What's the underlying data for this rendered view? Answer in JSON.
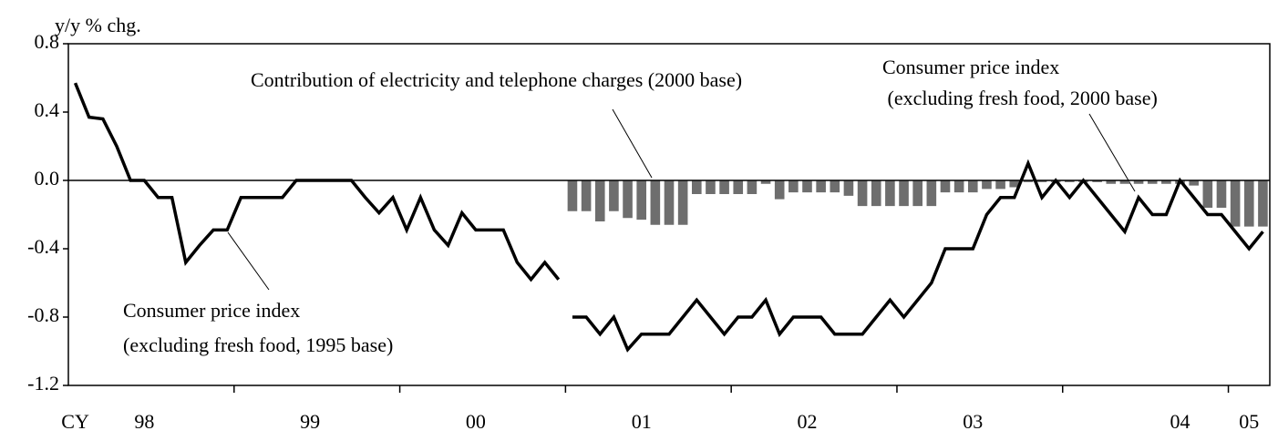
{
  "chart_data": {
    "type": "combo",
    "y_label": "y/y % chg.",
    "categories": [
      "CY",
      null,
      null,
      null,
      null,
      "98",
      null,
      null,
      null,
      null,
      null,
      null,
      null,
      null,
      null,
      null,
      null,
      "99",
      null,
      null,
      null,
      null,
      null,
      null,
      null,
      null,
      null,
      null,
      null,
      "00",
      null,
      null,
      null,
      null,
      null,
      null,
      null,
      null,
      null,
      null,
      null,
      "01",
      null,
      null,
      null,
      null,
      null,
      null,
      null,
      null,
      null,
      null,
      null,
      "02",
      null,
      null,
      null,
      null,
      null,
      null,
      null,
      null,
      null,
      null,
      null,
      "03",
      null,
      null,
      null,
      null,
      null,
      null,
      null,
      null,
      null,
      null,
      null,
      null,
      null,
      null,
      "04",
      null,
      null,
      null,
      null,
      "05",
      null
    ],
    "ylim": [
      -1.2,
      0.8
    ],
    "yticks": [
      0.8,
      0.4,
      {
        "value": 0,
        "label": "0.0"
      },
      -0.4,
      -0.8,
      -1.2
    ],
    "series": [
      {
        "type": "bar",
        "color": "#6e6e6e",
        "values": [
          null,
          null,
          null,
          null,
          null,
          null,
          null,
          null,
          null,
          null,
          null,
          null,
          null,
          null,
          null,
          null,
          null,
          null,
          null,
          null,
          null,
          null,
          null,
          null,
          null,
          null,
          null,
          null,
          null,
          null,
          null,
          null,
          null,
          null,
          null,
          null,
          -0.18,
          -0.18,
          -0.24,
          -0.18,
          -0.22,
          -0.23,
          -0.26,
          -0.26,
          -0.26,
          -0.08,
          -0.08,
          -0.08,
          -0.08,
          -0.08,
          -0.02,
          -0.11,
          -0.07,
          -0.07,
          -0.07,
          -0.07,
          -0.09,
          -0.15,
          -0.15,
          -0.15,
          -0.15,
          -0.15,
          -0.15,
          -0.07,
          -0.07,
          -0.07,
          -0.05,
          -0.05,
          -0.04,
          -0.01,
          -0.01,
          -0.01,
          -0.01,
          -0.01,
          -0.01,
          -0.02,
          -0.02,
          -0.02,
          -0.02,
          -0.02,
          -0.02,
          -0.03,
          -0.16,
          -0.16,
          -0.27,
          -0.27,
          -0.27
        ]
      },
      {
        "type": "line",
        "color": "#000000",
        "values": [
          0.57,
          0.37,
          0.36,
          0.2,
          0.0,
          0.0,
          -0.1,
          -0.1,
          -0.48,
          -0.38,
          -0.29,
          -0.29,
          -0.1,
          -0.1,
          -0.1,
          -0.1,
          0.0,
          0.0,
          0.0,
          0.0,
          0.0,
          -0.1,
          -0.19,
          -0.1,
          -0.29,
          -0.1,
          -0.29,
          -0.38,
          -0.19,
          -0.29,
          -0.29,
          -0.29,
          -0.48,
          -0.58,
          -0.48,
          -0.58,
          null,
          null,
          null,
          null,
          null,
          null,
          null,
          null,
          null,
          null,
          null,
          null,
          null,
          null,
          null,
          null,
          null,
          null,
          null,
          null,
          null,
          null,
          null,
          null,
          null,
          null,
          null,
          null,
          null,
          null,
          null,
          null,
          null,
          null,
          null,
          null,
          null,
          null,
          null,
          null,
          null,
          null,
          null,
          null,
          null,
          null,
          null,
          null,
          null,
          null,
          null
        ]
      },
      {
        "type": "line",
        "color": "#000000",
        "values": [
          null,
          null,
          null,
          null,
          null,
          null,
          null,
          null,
          null,
          null,
          null,
          null,
          null,
          null,
          null,
          null,
          null,
          null,
          null,
          null,
          null,
          null,
          null,
          null,
          null,
          null,
          null,
          null,
          null,
          null,
          null,
          null,
          null,
          null,
          null,
          null,
          -0.8,
          -0.8,
          -0.9,
          -0.8,
          -0.99,
          -0.9,
          -0.9,
          -0.9,
          -0.8,
          -0.7,
          -0.8,
          -0.9,
          -0.8,
          -0.8,
          -0.7,
          -0.9,
          -0.8,
          -0.8,
          -0.8,
          -0.9,
          -0.9,
          -0.9,
          -0.8,
          -0.7,
          -0.8,
          -0.7,
          -0.6,
          -0.4,
          -0.4,
          -0.4,
          -0.2,
          -0.1,
          -0.1,
          0.1,
          -0.1,
          0.0,
          -0.1,
          0.0,
          -0.1,
          -0.2,
          -0.3,
          -0.1,
          -0.2,
          -0.2,
          0.0,
          -0.1,
          -0.2,
          -0.2,
          -0.3,
          -0.4,
          -0.3
        ]
      }
    ],
    "annotations": [
      "Contribution of electricity and telephone charges (2000 base)",
      "Consumer price index",
      " (excluding fresh food, 2000 base)",
      "Consumer price index",
      "(excluding fresh food, 1995 base)"
    ]
  }
}
